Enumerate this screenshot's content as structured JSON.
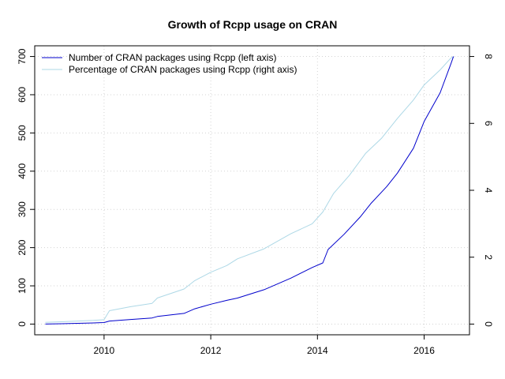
{
  "chart_data": {
    "type": "line",
    "title": "Growth of Rcpp usage on CRAN",
    "xlabel": "",
    "ylabel": "",
    "xlim": [
      2008.7,
      2016.85
    ],
    "ylim_left": [
      -28,
      728
    ],
    "ylim_right": [
      -0.32,
      8.32
    ],
    "x_ticks": [
      2010,
      2012,
      2014,
      2016
    ],
    "y_left_ticks": [
      0,
      100,
      200,
      300,
      400,
      500,
      600,
      700
    ],
    "y_right_ticks": [
      0,
      2,
      4,
      6,
      8
    ],
    "grid": true,
    "legend_position": "top-left",
    "colors": {
      "left_series": "#0000cc",
      "right_series": "#add8e6",
      "grid": "#d3d3d3"
    },
    "series": [
      {
        "name": "Number of CRAN packages using Rcpp (left axis)",
        "axis": "left",
        "x": [
          2008.9,
          2009.2,
          2009.5,
          2009.8,
          2010.0,
          2010.1,
          2010.5,
          2010.9,
          2011.0,
          2011.5,
          2011.7,
          2012.0,
          2012.3,
          2012.5,
          2013.0,
          2013.5,
          2013.9,
          2014.1,
          2014.2,
          2014.5,
          2014.8,
          2015.0,
          2015.3,
          2015.5,
          2015.8,
          2016.0,
          2016.3,
          2016.5,
          2016.55
        ],
        "y": [
          0,
          1,
          2,
          3,
          4,
          8,
          12,
          16,
          20,
          28,
          40,
          52,
          62,
          68,
          90,
          120,
          148,
          160,
          195,
          235,
          280,
          315,
          360,
          395,
          460,
          530,
          605,
          680,
          700
        ]
      },
      {
        "name": "Percentage of CRAN packages using Rcpp (right axis)",
        "axis": "right",
        "x": [
          2008.9,
          2009.2,
          2009.5,
          2009.8,
          2010.0,
          2010.1,
          2010.5,
          2010.9,
          2011.0,
          2011.5,
          2011.7,
          2012.0,
          2012.3,
          2012.5,
          2013.0,
          2013.5,
          2013.9,
          2014.1,
          2014.3,
          2014.6,
          2014.9,
          2015.2,
          2015.5,
          2015.8,
          2016.0,
          2016.3,
          2016.5,
          2016.55
        ],
        "y": [
          0.05,
          0.07,
          0.09,
          0.11,
          0.13,
          0.4,
          0.52,
          0.62,
          0.78,
          1.05,
          1.3,
          1.55,
          1.75,
          1.95,
          2.25,
          2.7,
          3.0,
          3.35,
          3.9,
          4.45,
          5.1,
          5.55,
          6.15,
          6.7,
          7.15,
          7.6,
          7.95,
          8.0
        ]
      }
    ]
  }
}
